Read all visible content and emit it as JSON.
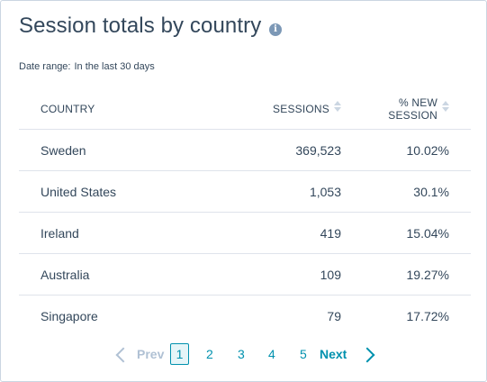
{
  "card": {
    "title": "Session totals by country",
    "info_icon": "info-icon",
    "date_range_label": "Date range:",
    "date_range_value": "In the last 30 days"
  },
  "table": {
    "columns": [
      {
        "label": "COUNTRY"
      },
      {
        "label": "SESSIONS",
        "sortable": true
      },
      {
        "label_line1": "% NEW",
        "label_line2": "SESSION",
        "sortable": true
      }
    ],
    "rows": [
      {
        "country": "Sweden",
        "sessions": "369,523",
        "new_session": "10.02%"
      },
      {
        "country": "United States",
        "sessions": "1,053",
        "new_session": "30.1%"
      },
      {
        "country": "Ireland",
        "sessions": "419",
        "new_session": "15.04%"
      },
      {
        "country": "Australia",
        "sessions": "109",
        "new_session": "19.27%"
      },
      {
        "country": "Singapore",
        "sessions": "79",
        "new_session": "17.72%"
      }
    ]
  },
  "pagination": {
    "prev_label": "Prev",
    "next_label": "Next",
    "pages": [
      "1",
      "2",
      "3",
      "4",
      "5"
    ],
    "current_page": "1"
  },
  "colors": {
    "text": "#33475b",
    "link": "#0091ae",
    "disabled": "#b0c1d4",
    "border": "#cbd6e2"
  }
}
